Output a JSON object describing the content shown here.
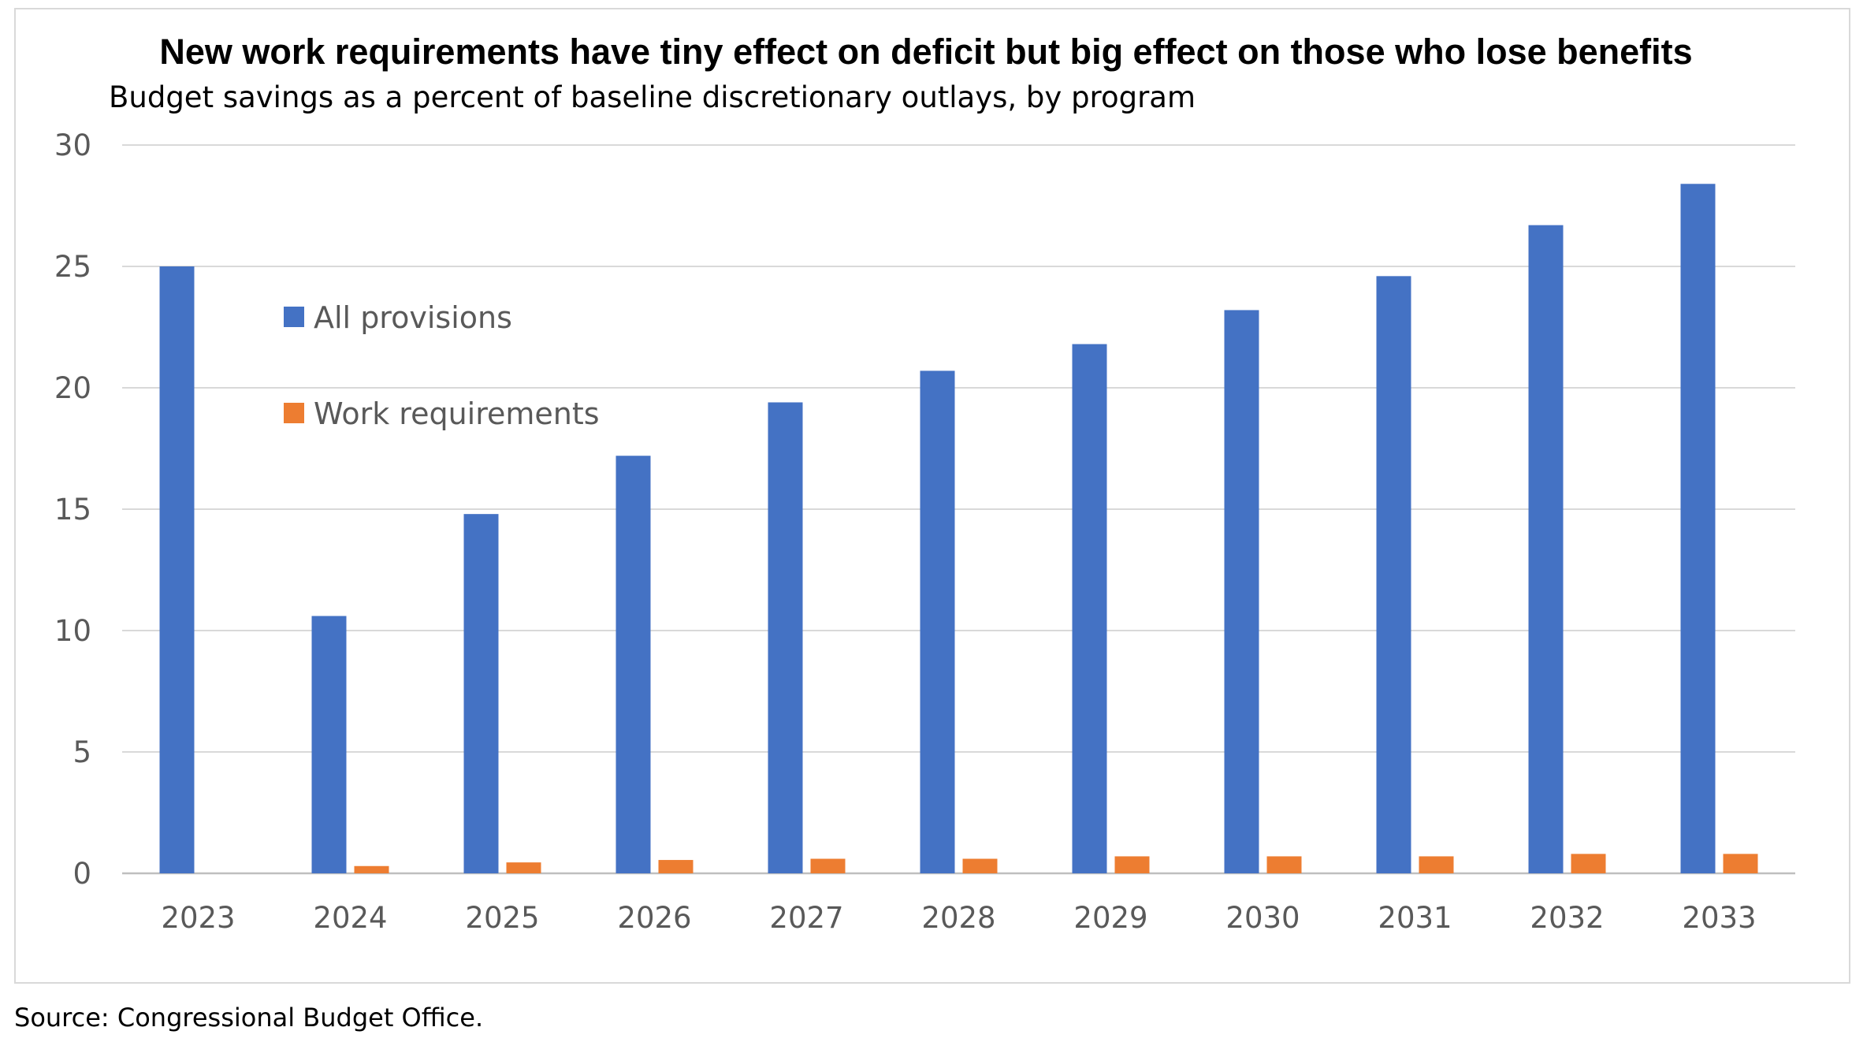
{
  "chart_data": {
    "type": "bar",
    "title": "New work requirements have tiny effect on deficit but big effect on those who lose benefits",
    "subtitle": "Budget savings as a percent of baseline discretionary outlays, by program",
    "xlabel": "",
    "ylabel": "",
    "ylim": [
      0,
      30
    ],
    "yticks": [
      0,
      5,
      10,
      15,
      20,
      25,
      30
    ],
    "grid": true,
    "legend_position": "upper-left inside plot",
    "categories": [
      "2023",
      "2024",
      "2025",
      "2026",
      "2027",
      "2028",
      "2029",
      "2030",
      "2031",
      "2032",
      "2033"
    ],
    "series": [
      {
        "name": "All provisions",
        "color": "#4472C4",
        "values": [
          25.0,
          10.6,
          14.8,
          17.2,
          19.4,
          20.7,
          21.8,
          23.2,
          24.6,
          26.7,
          28.4
        ]
      },
      {
        "name": "Work requirements",
        "color": "#ED7D31",
        "values": [
          0.0,
          0.3,
          0.45,
          0.55,
          0.6,
          0.6,
          0.7,
          0.7,
          0.7,
          0.8,
          0.8
        ]
      }
    ],
    "source": "Source: Congressional Budget Office."
  }
}
